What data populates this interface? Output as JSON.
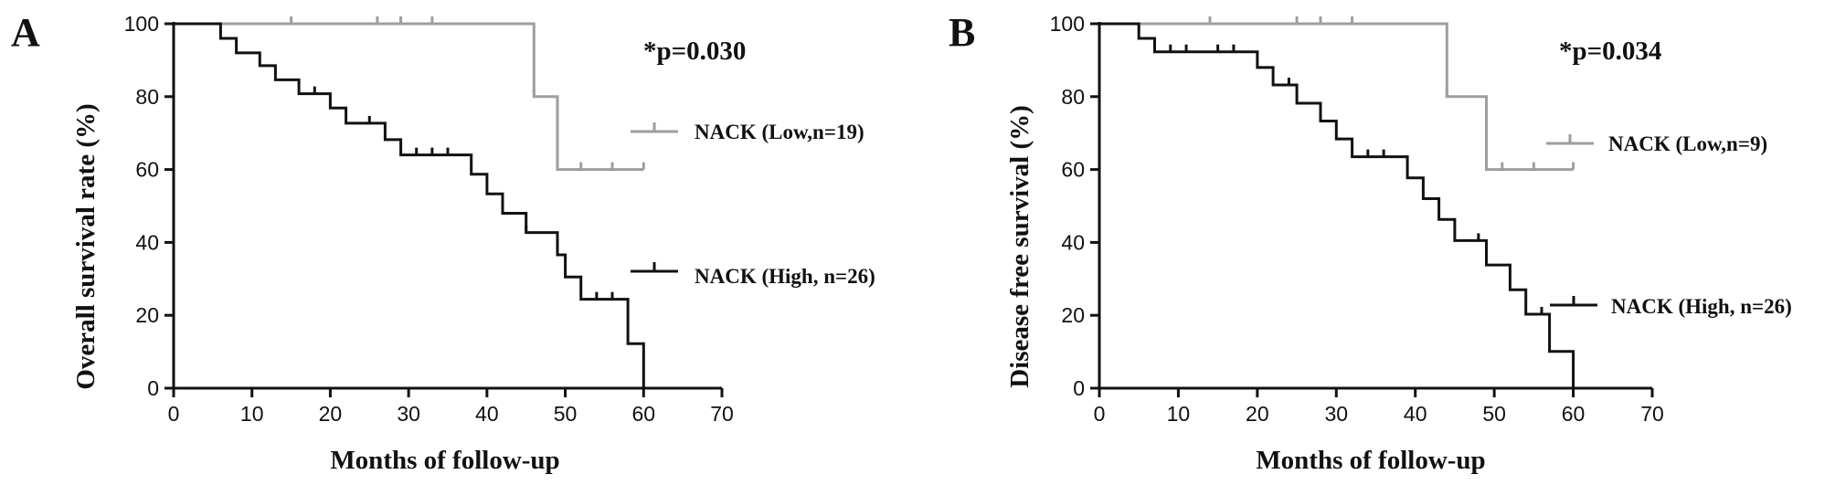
{
  "chart_data": [
    {
      "type": "line",
      "panel_label": "A",
      "xlabel": "Months of follow-up",
      "ylabel": "Overall survival rate (%)",
      "xlim": [
        0,
        70
      ],
      "ylim": [
        0,
        100
      ],
      "x_ticks": [
        0,
        10,
        20,
        30,
        40,
        50,
        60,
        70
      ],
      "y_ticks": [
        0,
        20,
        40,
        60,
        80,
        100
      ],
      "annotation": "*p=0.030",
      "grid": false,
      "legend_position": "right",
      "series": [
        {
          "name": "NACK (Low,n=19)",
          "color": "#9e9e9e",
          "step_x": [
            0,
            46,
            46,
            49,
            49,
            60
          ],
          "step_y": [
            100,
            100,
            80,
            80,
            60,
            60
          ],
          "censored": [
            [
              15,
              100
            ],
            [
              26,
              100
            ],
            [
              29,
              100
            ],
            [
              33,
              100
            ],
            [
              46,
              80
            ],
            [
              52,
              60
            ],
            [
              56,
              60
            ],
            [
              60,
              60
            ]
          ]
        },
        {
          "name": "NACK (High, n=26)",
          "color": "#111111",
          "step_x": [
            0,
            6,
            6,
            8,
            8,
            11,
            11,
            13,
            13,
            16,
            16,
            20,
            20,
            22,
            22,
            27,
            27,
            29,
            29,
            38,
            38,
            40,
            40,
            42,
            42,
            45,
            45,
            49,
            49,
            50,
            50,
            52,
            52,
            58,
            58,
            60,
            60
          ],
          "step_y": [
            100,
            100,
            96,
            96,
            92,
            92,
            88.5,
            88.5,
            84.6,
            84.6,
            80.8,
            80.8,
            76.9,
            76.9,
            72.7,
            72.7,
            68.2,
            68.2,
            64,
            64,
            58.7,
            58.7,
            53.3,
            53.3,
            48,
            48,
            42.7,
            42.7,
            36.6,
            36.6,
            30.5,
            30.5,
            24.4,
            24.4,
            12.2,
            12.2,
            0
          ],
          "censored": [
            [
              18,
              80.8
            ],
            [
              25,
              72.7
            ],
            [
              31,
              64
            ],
            [
              33,
              64
            ],
            [
              35,
              64
            ],
            [
              45,
              42.7
            ],
            [
              54,
              24.4
            ],
            [
              56,
              24.4
            ]
          ]
        }
      ]
    },
    {
      "type": "line",
      "panel_label": "B",
      "xlabel": "Months of follow-up",
      "ylabel": "Disease free survival (%)",
      "xlim": [
        0,
        70
      ],
      "ylim": [
        0,
        100
      ],
      "x_ticks": [
        0,
        10,
        20,
        30,
        40,
        50,
        60,
        70
      ],
      "y_ticks": [
        0,
        20,
        40,
        60,
        80,
        100
      ],
      "annotation": "*p=0.034",
      "grid": false,
      "legend_position": "right",
      "series": [
        {
          "name": "NACK (Low,n=9)",
          "color": "#9e9e9e",
          "step_x": [
            0,
            44,
            44,
            49,
            49,
            60
          ],
          "step_y": [
            100,
            100,
            80,
            80,
            60,
            60
          ],
          "censored": [
            [
              14,
              100
            ],
            [
              25,
              100
            ],
            [
              28,
              100
            ],
            [
              32,
              100
            ],
            [
              44,
              80
            ],
            [
              51,
              60
            ],
            [
              55,
              60
            ],
            [
              60,
              60
            ]
          ]
        },
        {
          "name": "NACK (High, n=26)",
          "color": "#111111",
          "step_x": [
            0,
            5,
            5,
            7,
            7,
            20,
            20,
            22,
            22,
            25,
            25,
            28,
            28,
            30,
            30,
            32,
            32,
            39,
            39,
            41,
            41,
            43,
            43,
            45,
            45,
            49,
            49,
            52,
            52,
            54,
            54,
            57,
            57,
            60,
            60
          ],
          "step_y": [
            100,
            100,
            96,
            96,
            92.3,
            92.3,
            88,
            88,
            83.2,
            83.2,
            78.2,
            78.2,
            73.3,
            73.3,
            68.4,
            68.4,
            63.5,
            63.5,
            57.7,
            57.7,
            52,
            52,
            46.3,
            46.3,
            40.5,
            40.5,
            33.8,
            33.8,
            27,
            27,
            20.3,
            20.3,
            10.1,
            10.1,
            0
          ],
          "censored": [
            [
              9,
              92.3
            ],
            [
              11,
              92.3
            ],
            [
              15,
              92.3
            ],
            [
              17,
              92.3
            ],
            [
              24,
              83.2
            ],
            [
              34,
              63.5
            ],
            [
              36,
              63.5
            ],
            [
              48,
              40.5
            ],
            [
              56,
              20.3
            ]
          ]
        }
      ]
    }
  ]
}
